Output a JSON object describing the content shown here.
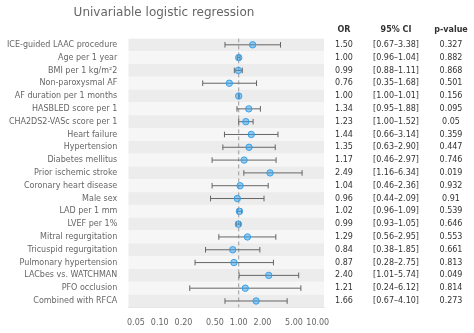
{
  "chart_data": {
    "type": "forest",
    "title": "Univariable logistic regression",
    "col_headers": [
      "OR",
      "95% CI",
      "p-value"
    ],
    "categories": [
      "ICE-guided LAAC procedure",
      "Age per 1 year",
      "BMI per 1 kg/m²2",
      "Non-paroxysmal AF",
      "AF duration per 1 months",
      "HASBLED score per 1",
      "CHA2DS2-VASc score per 1",
      "Heart failure",
      "Hypertension",
      "Diabetes mellitus",
      "Prior ischemic stroke",
      "Coronary heart disease",
      "Male sex",
      "LAD per 1 mm",
      "LVEF per 1%",
      "Mitral regurgitation",
      "Tricuspid regurgitation",
      "Pulmonary hypertension",
      "LACbes vs. WATCHMAN",
      "PFO occlusion",
      "Combined with RFCA"
    ],
    "values": [
      1.5,
      1.0,
      0.99,
      0.76,
      1.0,
      1.34,
      1.23,
      1.44,
      1.35,
      1.17,
      2.49,
      1.04,
      0.96,
      1.02,
      0.99,
      1.29,
      0.84,
      0.87,
      2.4,
      1.21,
      1.66
    ],
    "value_labels": [
      "1.50",
      "1.00",
      "0.99",
      "0.76",
      "1.00",
      "1.34",
      "1.23",
      "1.44",
      "1.35",
      "1.17",
      "2.49",
      "1.04",
      "0.96",
      "1.02",
      "0.99",
      "1.29",
      "0.84",
      "0.87",
      "2.40",
      "1.21",
      "1.66"
    ],
    "ci_low": [
      0.67,
      0.96,
      0.88,
      0.35,
      1.0,
      0.95,
      1.0,
      0.66,
      0.63,
      0.46,
      1.16,
      0.46,
      0.44,
      0.96,
      0.93,
      0.56,
      0.38,
      0.28,
      1.01,
      0.24,
      0.67
    ],
    "ci_high": [
      3.38,
      1.04,
      1.11,
      1.68,
      1.01,
      1.88,
      1.52,
      3.14,
      2.9,
      2.97,
      6.34,
      2.36,
      2.09,
      1.09,
      1.05,
      2.95,
      1.85,
      2.75,
      5.74,
      6.12,
      4.1
    ],
    "ci_labels": [
      "[0.67–3.38]",
      "[0.96–1.04]",
      "[0.88–1.11]",
      "[0.35–1.68]",
      "[1.00–1.01]",
      "[0.95–1.88]",
      "[1.00–1.52]",
      "[0.66–3.14]",
      "[0.63–2.90]",
      "[0.46–2.97]",
      "[1.16–6.34]",
      "[0.46–2.36]",
      "[0.44–2.09]",
      "[0.96–1.09]",
      "[0.93–1.05]",
      "[0.56–2.95]",
      "[0.38–1.85]",
      "[0.28–2.75]",
      "[1.01–5.74]",
      "[0.24–6.12]",
      "[0.67–4.10]"
    ],
    "p_values": [
      "0.327",
      "0.882",
      "0.868",
      "0.501",
      "0.156",
      "0.095",
      "0.05",
      "0.359",
      "0.447",
      "0.746",
      "0.019",
      "0.932",
      "0.91",
      "0.539",
      "0.646",
      "0.553",
      "0.661",
      "0.813",
      "0.049",
      "0.814",
      "0.273"
    ],
    "reference_x": 1.0,
    "log": "x",
    "xlim": [
      0.04,
      12.0
    ],
    "xticks": [
      0.05,
      {
        "value": 0.1,
        "label": "0.10"
      },
      {
        "value": 0.2,
        "label": "0.20"
      },
      {
        "value": 0.5,
        "label": "0.50"
      },
      {
        "value": 1.0,
        "label": "1.00"
      },
      {
        "value": 2.0,
        "label": "2.00"
      },
      {
        "value": 5.0,
        "label": "5.00"
      },
      {
        "value": 10.0,
        "label": "10.00"
      }
    ],
    "grid": false,
    "tick_labels": "x"
  }
}
